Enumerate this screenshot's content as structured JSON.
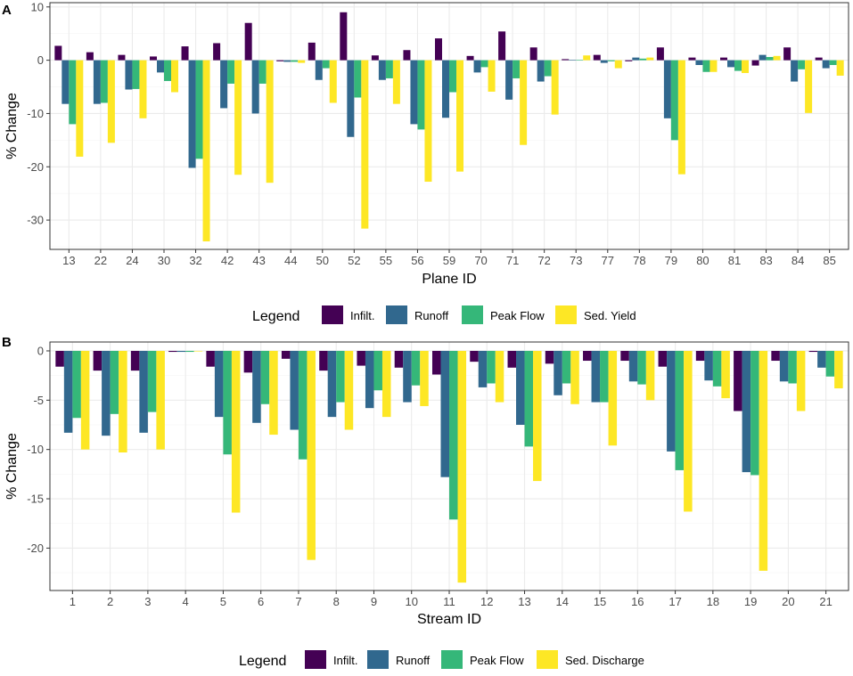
{
  "colors": {
    "infilt": "#440154",
    "runoff": "#31688E",
    "peak": "#35B779",
    "sed": "#FDE725",
    "grid_major": "#EBEBEB",
    "grid_minor": "#F5F5F5",
    "panel_border": "#333333",
    "text": "#222222"
  },
  "chart_data": [
    {
      "type": "bar",
      "panel_label": "A",
      "xlabel": "Plane ID",
      "ylabel": "% Change",
      "ylim": [
        -35.5,
        10.8
      ],
      "yticks": [
        10,
        0,
        -10,
        -20,
        -30
      ],
      "categories": [
        "13",
        "22",
        "24",
        "30",
        "32",
        "42",
        "43",
        "44",
        "50",
        "52",
        "55",
        "56",
        "59",
        "70",
        "71",
        "72",
        "73",
        "77",
        "78",
        "79",
        "80",
        "81",
        "83",
        "84",
        "85"
      ],
      "series": [
        {
          "name": "Infilt.",
          "values": [
            2.7,
            1.5,
            1.0,
            0.7,
            2.6,
            3.2,
            7.0,
            -0.2,
            3.3,
            9.0,
            0.9,
            1.9,
            4.1,
            0.8,
            5.4,
            2.4,
            0.2,
            1.0,
            -0.2,
            2.4,
            0.5,
            0.5,
            -1.0,
            2.4,
            0.5
          ]
        },
        {
          "name": "Runoff",
          "values": [
            -8.2,
            -8.2,
            -5.5,
            -2.3,
            -20.2,
            -9.0,
            -10.0,
            -0.3,
            -3.7,
            -14.4,
            -3.7,
            -12.0,
            -10.8,
            -2.3,
            -7.4,
            -4.0,
            0.1,
            -0.5,
            0.5,
            -10.9,
            -0.9,
            -1.3,
            1.0,
            -4.0,
            -1.5
          ]
        },
        {
          "name": "Peak Flow",
          "values": [
            -12.0,
            -8.0,
            -5.4,
            -3.9,
            -18.5,
            -4.4,
            -4.4,
            -0.3,
            -1.5,
            -7.0,
            -3.4,
            -13.0,
            -6.0,
            -1.3,
            -3.4,
            -3.0,
            0.1,
            -0.2,
            0.3,
            -15.0,
            -2.2,
            -2.0,
            0.6,
            -1.7,
            -0.9
          ]
        },
        {
          "name": "Sed. Yield",
          "values": [
            -18.1,
            -15.5,
            -10.9,
            -6.0,
            -34.0,
            -21.5,
            -23.0,
            -0.5,
            -8.0,
            -31.6,
            -8.2,
            -22.8,
            -20.9,
            -5.9,
            -15.9,
            -10.2,
            0.9,
            -1.5,
            0.5,
            -21.4,
            -2.2,
            -2.4,
            0.8,
            -9.9,
            -2.9
          ]
        }
      ],
      "legend": {
        "title": "Legend",
        "entries": [
          "Infilt.",
          "Runoff",
          "Peak Flow",
          "Sed. Yield"
        ],
        "placement": "bottom"
      }
    },
    {
      "type": "bar",
      "panel_label": "B",
      "xlabel": "Stream ID",
      "ylabel": "% Change",
      "ylim": [
        -24.3,
        0.9
      ],
      "yticks": [
        0,
        -5,
        -10,
        -15,
        -20
      ],
      "categories": [
        "1",
        "2",
        "3",
        "4",
        "5",
        "6",
        "7",
        "8",
        "9",
        "10",
        "11",
        "12",
        "13",
        "14",
        "15",
        "16",
        "17",
        "18",
        "19",
        "20",
        "21"
      ],
      "series": [
        {
          "name": "Infilt.",
          "values": [
            -1.6,
            -2.0,
            -2.0,
            -0.1,
            -1.6,
            -2.2,
            -0.8,
            -2.0,
            -1.5,
            -1.7,
            -2.4,
            -1.1,
            -1.7,
            -1.3,
            -1.0,
            -1.0,
            -1.6,
            -1.0,
            -6.1,
            -1.0,
            -0.1
          ]
        },
        {
          "name": "Runoff",
          "values": [
            -8.3,
            -8.6,
            -8.3,
            -0.1,
            -6.7,
            -7.3,
            -8.0,
            -6.7,
            -5.8,
            -5.2,
            -12.8,
            -3.7,
            -7.5,
            -4.5,
            -5.2,
            -3.1,
            -10.2,
            -3.0,
            -12.3,
            -3.1,
            -1.7
          ]
        },
        {
          "name": "Peak Flow",
          "values": [
            -6.8,
            -6.4,
            -6.2,
            -0.1,
            -10.5,
            -5.4,
            -11.0,
            -5.2,
            -4.0,
            -3.5,
            -17.1,
            -3.3,
            -9.7,
            -3.3,
            -5.2,
            -3.4,
            -12.1,
            -3.6,
            -12.6,
            -3.3,
            -2.6
          ]
        },
        {
          "name": "Sed. Discharge",
          "values": [
            -10.0,
            -10.3,
            -10.0,
            0.0,
            -16.4,
            -8.5,
            -21.2,
            -8.0,
            -6.7,
            -5.6,
            -23.5,
            -5.2,
            -13.2,
            -5.4,
            -9.6,
            -5.0,
            -16.3,
            -4.8,
            -22.3,
            -6.1,
            -3.8
          ]
        }
      ],
      "legend": {
        "title": "Legend",
        "entries": [
          "Infilt.",
          "Runoff",
          "Peak Flow",
          "Sed. Discharge"
        ],
        "placement": "bottom"
      }
    }
  ]
}
